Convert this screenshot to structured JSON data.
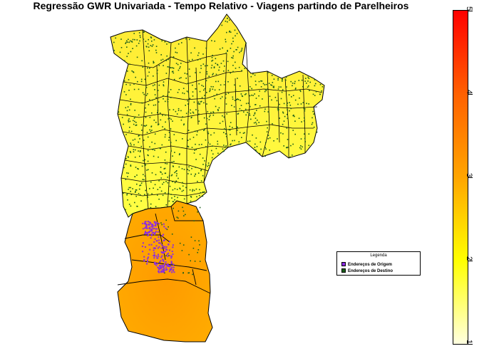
{
  "title": "Regressão GWR Univariada - Tempo Relativo - Viagens partindo de Parelheiros",
  "legend": {
    "title": "Legenda",
    "items": [
      {
        "label": "Endereços de Origem",
        "color": "#8a2be2"
      },
      {
        "label": "Endereços de Destino",
        "color": "#1a5e1a"
      }
    ]
  },
  "colorbar": {
    "ticks": [
      "1",
      "2",
      "3",
      "4",
      "5"
    ],
    "colors": [
      "#ffffe0",
      "#ffff00",
      "#ffa500",
      "#ff6000",
      "#ff0000"
    ]
  },
  "map": {
    "fill_north": "#ffff33",
    "fill_south": "#ffa500",
    "border_color": "#000000",
    "destination_color": "#1a5e1a",
    "origin_color": "#8a2be2"
  }
}
